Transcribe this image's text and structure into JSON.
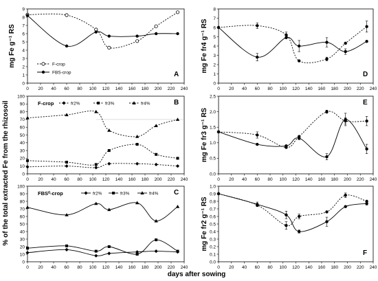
{
  "figure": {
    "xlabel": "days after sowing",
    "shared_ylabel": "% of the total extracted  Fe  from the rhizosoil"
  },
  "chart_data": [
    {
      "id": "A",
      "type": "line",
      "panel_label": "A",
      "ylabel": "mg Fe g⁻¹ RS",
      "xlim": [
        0,
        240
      ],
      "xticks": [
        0,
        20,
        40,
        60,
        80,
        100,
        120,
        140,
        160,
        180,
        200,
        220,
        240
      ],
      "ylim": [
        0,
        9
      ],
      "yticks": [
        0,
        1,
        2,
        3,
        4,
        5,
        6,
        7,
        8,
        9
      ],
      "legend": {
        "position": "bottom-left"
      },
      "series": [
        {
          "name": "F-crop",
          "style": "dotted",
          "marker": "open-circle",
          "x": [
            0,
            60,
            105,
            125,
            168,
            197,
            230
          ],
          "y": [
            8.3,
            8.25,
            6.5,
            4.3,
            5.1,
            6.9,
            8.6
          ]
        },
        {
          "name": "FBS-crop",
          "style": "solid",
          "marker": "filled-circle",
          "x": [
            0,
            60,
            105,
            125,
            168,
            197,
            230
          ],
          "y": [
            8.2,
            4.5,
            6.2,
            5.7,
            5.7,
            6.0,
            6.0
          ]
        }
      ]
    },
    {
      "id": "B",
      "type": "line",
      "panel_label": "B",
      "subtitle": "F-crop",
      "xlim": [
        0,
        240
      ],
      "xticks": [
        0,
        20,
        40,
        60,
        80,
        100,
        120,
        140,
        160,
        180,
        200,
        220,
        240
      ],
      "ylim": [
        0,
        100
      ],
      "yticks": [
        0,
        10,
        20,
        30,
        40,
        50,
        60,
        70,
        80,
        90,
        100
      ],
      "legend": {
        "position": "top"
      },
      "series": [
        {
          "name": "fr2%",
          "style": "dotted",
          "marker": "diamond",
          "x": [
            0,
            60,
            105,
            125,
            168,
            197,
            230
          ],
          "y": [
            9,
            10,
            8,
            13,
            13,
            12,
            10
          ]
        },
        {
          "name": "fr3%",
          "style": "dotted",
          "marker": "square",
          "x": [
            0,
            60,
            105,
            125,
            168,
            197,
            230
          ],
          "y": [
            17,
            15,
            12,
            30,
            38,
            25,
            20
          ]
        },
        {
          "name": "fr4%",
          "style": "dotted",
          "marker": "triangle",
          "x": [
            0,
            60,
            105,
            125,
            168,
            197,
            230
          ],
          "y": [
            72,
            76,
            80,
            56,
            48,
            62,
            70
          ]
        }
      ]
    },
    {
      "id": "C",
      "type": "line",
      "panel_label": "C",
      "subtitle": "FBS⁰-crop",
      "xlim": [
        0,
        240
      ],
      "xticks": [
        0,
        20,
        40,
        60,
        80,
        100,
        120,
        140,
        160,
        180,
        200,
        220,
        240
      ],
      "ylim": [
        0,
        100
      ],
      "yticks": [
        0,
        10,
        20,
        30,
        40,
        50,
        60,
        70,
        80,
        90,
        100
      ],
      "legend": {
        "position": "top"
      },
      "series": [
        {
          "name": "fr2%",
          "style": "solid",
          "marker": "diamond",
          "x": [
            0,
            60,
            105,
            125,
            168,
            197,
            230
          ],
          "y": [
            12,
            16,
            8,
            11,
            13,
            14,
            13
          ]
        },
        {
          "name": "fr3%",
          "style": "solid",
          "marker": "square",
          "x": [
            0,
            60,
            105,
            125,
            168,
            197,
            230
          ],
          "y": [
            18,
            21,
            14,
            20,
            10,
            29,
            14
          ]
        },
        {
          "name": "fr4%",
          "style": "solid",
          "marker": "triangle",
          "x": [
            0,
            60,
            105,
            125,
            168,
            197,
            230
          ],
          "y": [
            72,
            62,
            77,
            69,
            78,
            54,
            73
          ]
        }
      ]
    },
    {
      "id": "D",
      "type": "line",
      "panel_label": "D",
      "ylabel": "mg Fe fr4  g⁻¹ RS",
      "xlim": [
        0,
        240
      ],
      "xticks": [
        0,
        20,
        40,
        60,
        80,
        100,
        120,
        140,
        160,
        180,
        200,
        220,
        240
      ],
      "ylim": [
        0,
        8
      ],
      "yticks": [
        0,
        1,
        2,
        3,
        4,
        5,
        6,
        7,
        8
      ],
      "series": [
        {
          "name": "",
          "style": "dotted",
          "marker": "filled-circle",
          "x": [
            0,
            60,
            105,
            125,
            168,
            197,
            230
          ],
          "y": [
            6.0,
            6.2,
            5.2,
            2.4,
            2.6,
            4.3,
            6.1
          ],
          "err": [
            0,
            0.3,
            0.3,
            0,
            0.2,
            0,
            0.6
          ]
        },
        {
          "name": "",
          "style": "solid",
          "marker": "filled-circle",
          "x": [
            0,
            60,
            105,
            125,
            168,
            197,
            230
          ],
          "y": [
            6.0,
            2.8,
            4.9,
            4.0,
            4.4,
            3.4,
            4.5
          ],
          "err": [
            0,
            0.4,
            0,
            0.6,
            0.5,
            0.3,
            0
          ]
        }
      ]
    },
    {
      "id": "E",
      "type": "line",
      "panel_label": "E",
      "ylabel": "mg Fe fr3  g⁻¹ RS",
      "xlim": [
        0,
        240
      ],
      "xticks": [
        0,
        20,
        40,
        60,
        80,
        100,
        120,
        140,
        160,
        180,
        200,
        220,
        240
      ],
      "ylim": [
        0,
        2.5
      ],
      "yticks": [
        0,
        0.5,
        1.0,
        1.5,
        2.0,
        2.5
      ],
      "series": [
        {
          "name": "",
          "style": "dotted",
          "marker": "filled-circle",
          "x": [
            0,
            60,
            105,
            125,
            168,
            197,
            230
          ],
          "y": [
            1.35,
            1.25,
            0.85,
            1.2,
            2.0,
            1.7,
            1.7
          ],
          "err": [
            0,
            0.1,
            0,
            0,
            0.05,
            0.1,
            0.15
          ]
        },
        {
          "name": "",
          "style": "solid",
          "marker": "filled-circle",
          "x": [
            0,
            60,
            105,
            125,
            168,
            197,
            230
          ],
          "y": [
            1.35,
            0.95,
            0.9,
            1.15,
            0.55,
            1.75,
            0.8
          ],
          "err": [
            0,
            0,
            0,
            0.05,
            0.1,
            0.2,
            0.15
          ]
        }
      ]
    },
    {
      "id": "F",
      "type": "line",
      "panel_label": "F",
      "ylabel": "mg Fe fr2  g⁻¹ RS",
      "xlim": [
        0,
        240
      ],
      "xticks": [
        0,
        20,
        40,
        60,
        80,
        100,
        120,
        140,
        160,
        180,
        200,
        220,
        240
      ],
      "ylim": [
        0,
        1.0
      ],
      "yticks": [
        0,
        0.1,
        0.2,
        0.3,
        0.4,
        0.5,
        0.6,
        0.7,
        0.8,
        0.9,
        1.0
      ],
      "series": [
        {
          "name": "",
          "style": "dotted",
          "marker": "filled-circle",
          "x": [
            0,
            60,
            105,
            125,
            168,
            197,
            230
          ],
          "y": [
            0.9,
            0.75,
            0.48,
            0.6,
            0.66,
            0.88,
            0.8
          ],
          "err": [
            0,
            0.02,
            0.05,
            0.03,
            0,
            0.03,
            0
          ]
        },
        {
          "name": "",
          "style": "solid",
          "marker": "filled-circle",
          "x": [
            0,
            60,
            105,
            125,
            168,
            197,
            230
          ],
          "y": [
            0.9,
            0.76,
            0.62,
            0.4,
            0.53,
            0.73,
            0.77
          ],
          "err": [
            0,
            0.03,
            0.05,
            0.02,
            0.06,
            0,
            0.02
          ]
        }
      ]
    }
  ]
}
